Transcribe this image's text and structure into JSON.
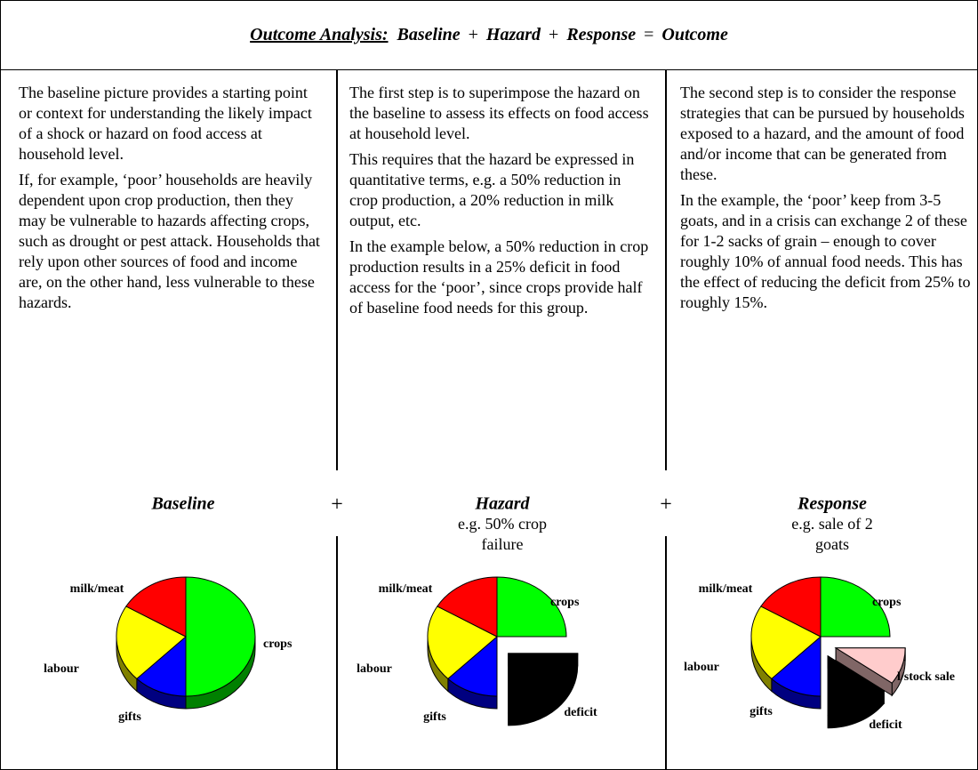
{
  "title": [
    "Outcome Analysis:",
    "Baseline",
    "+",
    "Hazard",
    "+",
    "Response",
    "=",
    "Outcome"
  ],
  "columns": [
    {
      "paragraphs": [
        "The baseline picture provides a starting point or context for understanding the likely impact of a shock or hazard on food access at household level.",
        "If, for example, ‘poor’ households are heavily dependent upon crop production, then they may be vulnerable to hazards affecting crops, such as drought or pest attack. Households that rely upon other sources of food and income are, on the other hand, less vulnerable to these hazards."
      ]
    },
    {
      "paragraphs": [
        "The first step is to superimpose the hazard on the baseline to assess its effects on food access at household level.",
        "This requires that the hazard be expressed in quantitative terms, e.g. a 50% reduction in crop production, a 20% reduction in milk output, etc.",
        "In the example below, a 50% reduction in crop production results in a 25% deficit in food access for the ‘poor’, since crops provide half of baseline food needs for this group."
      ]
    },
    {
      "paragraphs": [
        "The second step is to consider the response strategies that can be pursued by households exposed to a hazard, and the amount of food and/or income that can be generated from these.",
        "In the example, the ‘poor’ keep from 3-5 goats, and in a crisis can exchange 2 of these for 1-2 sacks of grain – enough to cover roughly 10% of annual food needs. This has the effect of reducing the deficit from 25% to roughly 15%."
      ]
    }
  ],
  "operators": [
    "+",
    "+"
  ],
  "panels": [
    {
      "heading": "Baseline",
      "subtitle": [],
      "chart_data": {
        "type": "pie",
        "categories": [
          "crops",
          "gifts",
          "labour",
          "milk/meat"
        ],
        "values": [
          50,
          12.5,
          21,
          16.5
        ],
        "colors": [
          "#00ff00",
          "#0000ff",
          "#ffff00",
          "#ff0000"
        ],
        "explode": [
          false,
          false,
          false,
          false
        ]
      }
    },
    {
      "heading": "Hazard",
      "subtitle": [
        "e.g. 50% crop",
        "failure"
      ],
      "chart_data": {
        "type": "pie",
        "categories": [
          "crops",
          "deficit",
          "gifts",
          "labour",
          "milk/meat"
        ],
        "values": [
          25,
          25,
          12.5,
          21,
          16.5
        ],
        "colors": [
          "#00ff00",
          "#000000",
          "#0000ff",
          "#ffff00",
          "#ff0000"
        ],
        "explode": [
          false,
          true,
          false,
          false,
          false
        ]
      }
    },
    {
      "heading": "Response",
      "subtitle": [
        "e.g. sale of 2",
        "goats"
      ],
      "chart_data": {
        "type": "pie",
        "categories": [
          "crops",
          "l/stock sale",
          "deficit",
          "gifts",
          "labour",
          "milk/meat"
        ],
        "values": [
          25,
          10,
          15,
          12.5,
          21,
          16.5
        ],
        "colors": [
          "#00ff00",
          "#ffcccc",
          "#000000",
          "#0000ff",
          "#ffff00",
          "#ff0000"
        ],
        "explode": [
          false,
          true,
          true,
          false,
          false,
          false
        ]
      }
    }
  ]
}
